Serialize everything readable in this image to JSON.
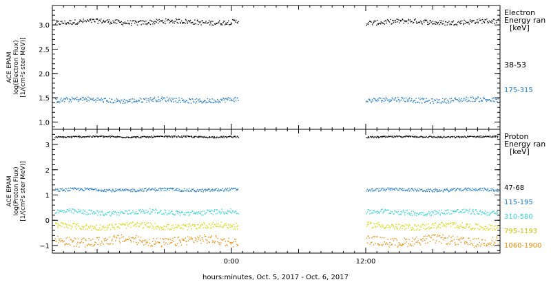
{
  "chart_data": [
    {
      "type": "scatter",
      "ylabel_lines": [
        "ACE EPAM",
        "log(Electron Flux)",
        "[1/(cm²s ster MeV)]"
      ],
      "ylim": [
        0.85,
        3.4
      ],
      "yticks": [
        1.0,
        1.5,
        2.0,
        2.5,
        3.0
      ],
      "ytick_labels": [
        "1.0",
        "1.5",
        "2.0",
        "2.5",
        "3.0"
      ],
      "legend_title_lines": [
        "Electron",
        "Energy ran",
        "[keV]"
      ],
      "series": [
        {
          "name": "38-53",
          "color": "#000000",
          "level": 3.07,
          "spread": 0.05
        },
        {
          "name": "175-315",
          "color": "#1a78c8",
          "level": 1.46,
          "spread": 0.05
        }
      ]
    },
    {
      "type": "scatter",
      "ylabel_lines": [
        "ACE EPAM",
        "log(Proton Flux)",
        "[1/(cm²s ster MeV)]"
      ],
      "ylim": [
        -1.3,
        3.6
      ],
      "yticks": [
        -1,
        0,
        1,
        2,
        3
      ],
      "ytick_labels": [
        "−1",
        "0",
        "1",
        "2",
        "3"
      ],
      "legend_title_lines": [
        "Proton",
        "Energy ran",
        "[keV]"
      ],
      "series": [
        {
          "name": "47-68",
          "color": "#000000",
          "level": 3.32,
          "spread": 0.03
        },
        {
          "name": "115-195",
          "color": "#1a78c8",
          "level": 1.22,
          "spread": 0.06
        },
        {
          "name": "310-580",
          "color": "#33d6d6",
          "level": 0.33,
          "spread": 0.1
        },
        {
          "name": "795-1193",
          "color": "#d6d600",
          "level": -0.22,
          "spread": 0.12
        },
        {
          "name": "1060-1900",
          "color": "#ee8a00",
          "level": -0.8,
          "spread": 0.18
        }
      ]
    }
  ],
  "x_axis": {
    "xlabel": "hours:minutes, Oct.  5, 2017 - Oct.  6, 2017",
    "range_hours": [
      -16,
      24
    ],
    "major_ticks": [
      0,
      12
    ],
    "major_tick_labels": [
      "0:00",
      "12:00"
    ],
    "data_segments": [
      [
        -15.8,
        0.6
      ],
      [
        12.0,
        23.8
      ]
    ]
  }
}
